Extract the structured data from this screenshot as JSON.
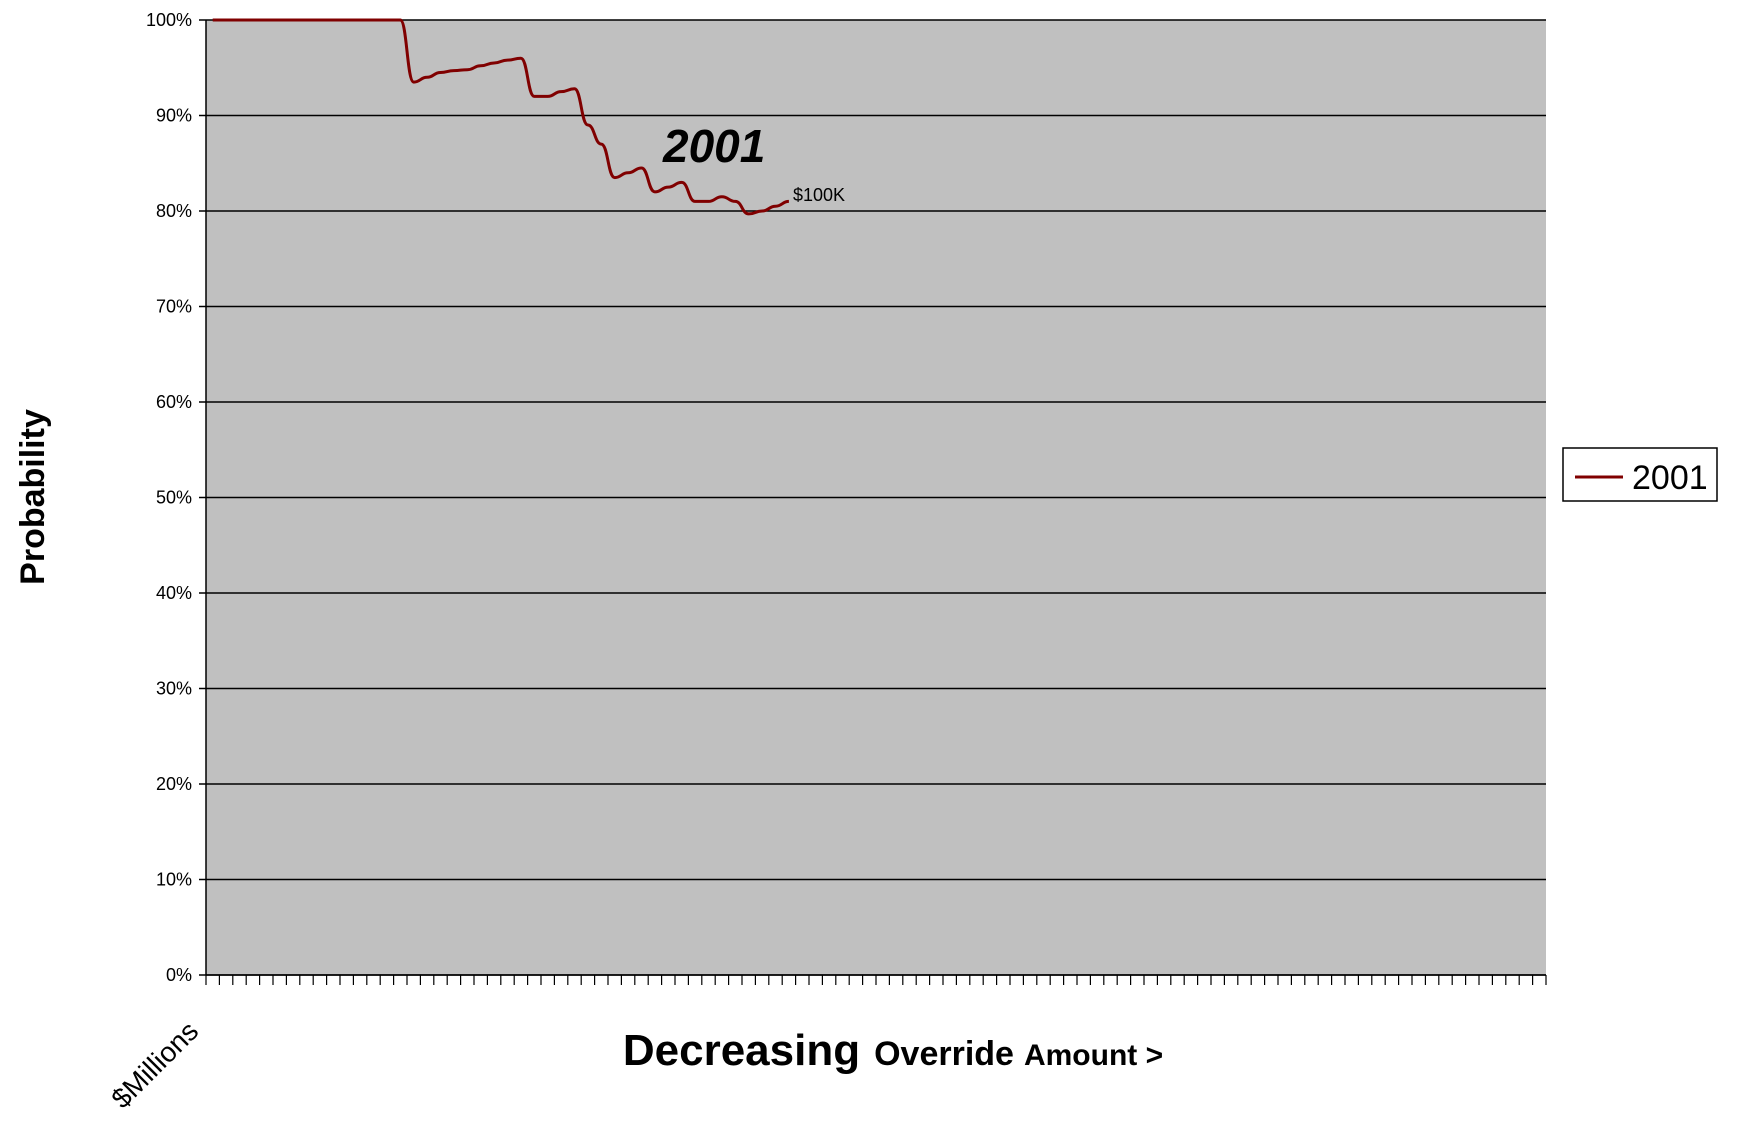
{
  "chart_data": {
    "type": "line",
    "title": "",
    "ylabel": "Probability",
    "xlabel": {
      "part1": "Decreasing",
      "part2": "Override",
      "part3": "Amount >"
    },
    "x_start_label": "$Millions",
    "ylim": [
      0,
      1
    ],
    "yticks": [
      0,
      0.1,
      0.2,
      0.3,
      0.4,
      0.5,
      0.6,
      0.7,
      0.8,
      0.9,
      1.0
    ],
    "ytick_labels": [
      "0%",
      "10%",
      "20%",
      "30%",
      "40%",
      "50%",
      "60%",
      "70%",
      "80%",
      "90%",
      "100%"
    ],
    "x_tick_count": 100,
    "grid": true,
    "legend_position": "right",
    "series": [
      {
        "name": "2001",
        "color": "#800000",
        "x": [
          0,
          1,
          2,
          3,
          4,
          5,
          6,
          7,
          8,
          9,
          10,
          11,
          12,
          13,
          14,
          15,
          16,
          17,
          18,
          19,
          20,
          21,
          22,
          23,
          24,
          25,
          26,
          27,
          28,
          29,
          30,
          31,
          32,
          33,
          34,
          35,
          36,
          37,
          38,
          39,
          40,
          41,
          42,
          43
        ],
        "values": [
          1.0,
          1.0,
          1.0,
          1.0,
          1.0,
          1.0,
          1.0,
          1.0,
          1.0,
          1.0,
          1.0,
          1.0,
          1.0,
          1.0,
          1.0,
          0.935,
          0.94,
          0.945,
          0.947,
          0.948,
          0.952,
          0.955,
          0.958,
          0.96,
          0.92,
          0.92,
          0.925,
          0.928,
          0.89,
          0.87,
          0.835,
          0.84,
          0.845,
          0.82,
          0.825,
          0.83,
          0.81,
          0.81,
          0.815,
          0.81,
          0.797,
          0.8,
          0.805,
          0.81
        ]
      }
    ],
    "annotations": {
      "series_label": "2001",
      "end_label": "$100K"
    }
  }
}
